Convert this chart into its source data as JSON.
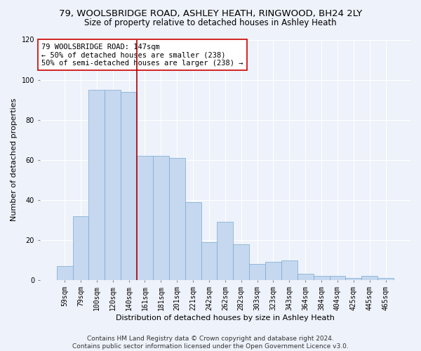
{
  "title1": "79, WOOLSBRIDGE ROAD, ASHLEY HEATH, RINGWOOD, BH24 2LY",
  "title2": "Size of property relative to detached houses in Ashley Heath",
  "xlabel": "Distribution of detached houses by size in Ashley Heath",
  "ylabel": "Number of detached properties",
  "categories": [
    "59sqm",
    "79sqm",
    "100sqm",
    "120sqm",
    "140sqm",
    "161sqm",
    "181sqm",
    "201sqm",
    "221sqm",
    "242sqm",
    "262sqm",
    "282sqm",
    "303sqm",
    "323sqm",
    "343sqm",
    "364sqm",
    "384sqm",
    "404sqm",
    "425sqm",
    "445sqm",
    "465sqm"
  ],
  "values": [
    7,
    32,
    95,
    95,
    94,
    62,
    62,
    61,
    39,
    19,
    29,
    18,
    8,
    9,
    10,
    3,
    2,
    2,
    1,
    2,
    1
  ],
  "bar_color": "#c5d8f0",
  "bar_edge_color": "#7aa8d0",
  "background_color": "#eef2fa",
  "grid_color": "#ffffff",
  "vline_color": "#aa0000",
  "vline_x_index": 4.5,
  "annotation_line1": "79 WOOLSBRIDGE ROAD: 147sqm",
  "annotation_line2": "← 50% of detached houses are smaller (238)",
  "annotation_line3": "50% of semi-detached houses are larger (238) →",
  "annotation_box_facecolor": "#ffffff",
  "annotation_box_edgecolor": "#cc0000",
  "ylim": [
    0,
    120
  ],
  "yticks": [
    0,
    20,
    40,
    60,
    80,
    100,
    120
  ],
  "footnote1": "Contains HM Land Registry data © Crown copyright and database right 2024.",
  "footnote2": "Contains public sector information licensed under the Open Government Licence v3.0.",
  "title1_fontsize": 9.5,
  "title2_fontsize": 8.5,
  "xlabel_fontsize": 8,
  "ylabel_fontsize": 8,
  "tick_fontsize": 7,
  "annotation_fontsize": 7.5,
  "footnote_fontsize": 6.5
}
